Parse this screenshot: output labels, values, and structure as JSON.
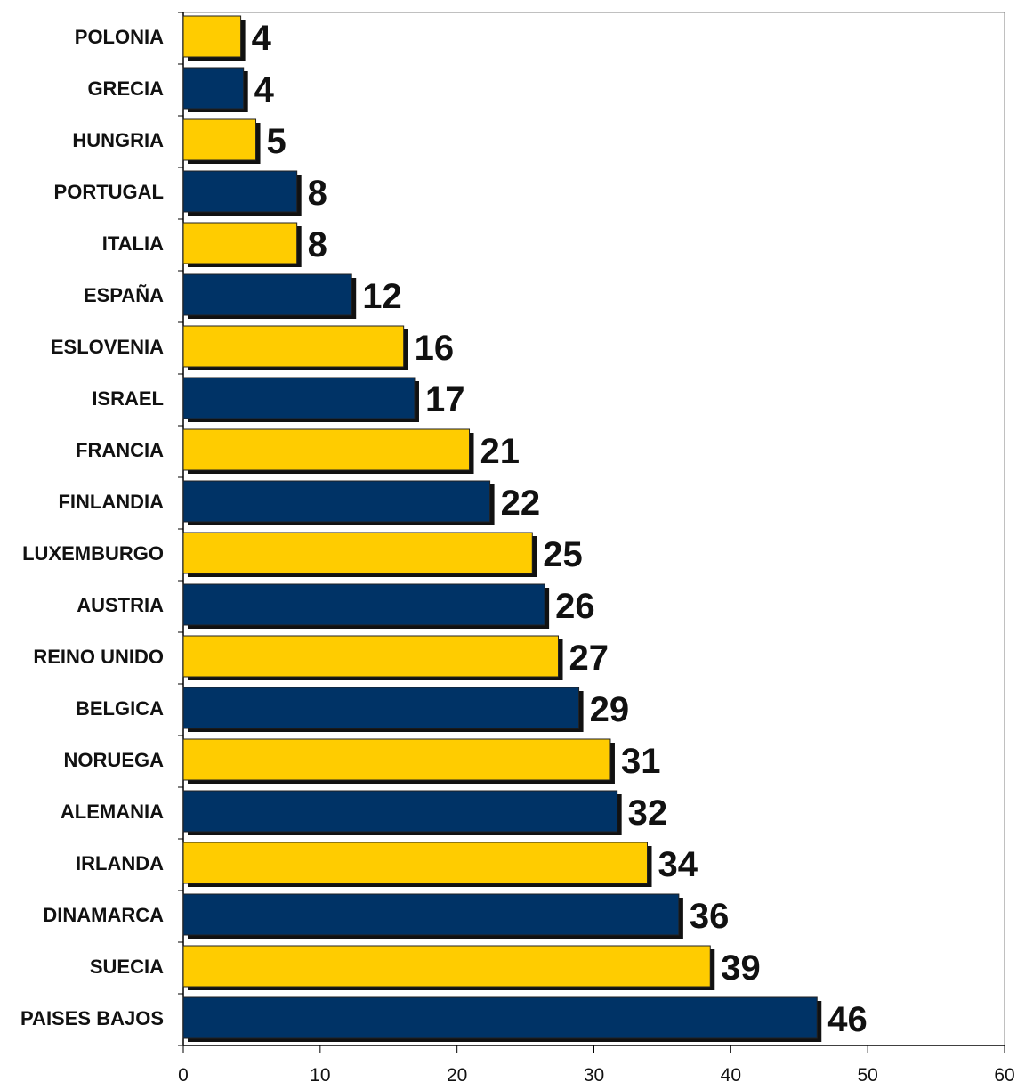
{
  "chart_data": {
    "type": "bar",
    "orientation": "horizontal",
    "title": "",
    "xlabel": "",
    "ylabel": "",
    "categories": [
      "POLONIA",
      "GRECIA",
      "HUNGRIA",
      "PORTUGAL",
      "ITALIA",
      "ESPAÑA",
      "ESLOVENIA",
      "ISRAEL",
      "FRANCIA",
      "FINLANDIA",
      "LUXEMBURGO",
      "AUSTRIA",
      "REINO UNIDO",
      "BELGICA",
      "NORUEGA",
      "ALEMANIA",
      "IRLANDA",
      "DINAMARCA",
      "SUECIA",
      "PAISES BAJOS"
    ],
    "values": [
      4.2,
      4.4,
      5.3,
      8.3,
      8.3,
      12.3,
      16.1,
      16.9,
      20.9,
      22.4,
      25.5,
      26.4,
      27.4,
      28.9,
      31.2,
      31.7,
      33.9,
      36.2,
      38.5,
      46.3
    ],
    "data_labels": [
      "4",
      "4",
      "5",
      "8",
      "8",
      "12",
      "16",
      "17",
      "21",
      "22",
      "25",
      "26",
      "27",
      "29",
      "31",
      "32",
      "34",
      "36",
      "39",
      "46"
    ],
    "bar_colors": [
      "#FFCC00",
      "#003366"
    ],
    "xlim": [
      0,
      60
    ],
    "xticks": [
      0,
      10,
      20,
      30,
      40,
      50,
      60
    ],
    "grid": false,
    "legend": "none"
  }
}
